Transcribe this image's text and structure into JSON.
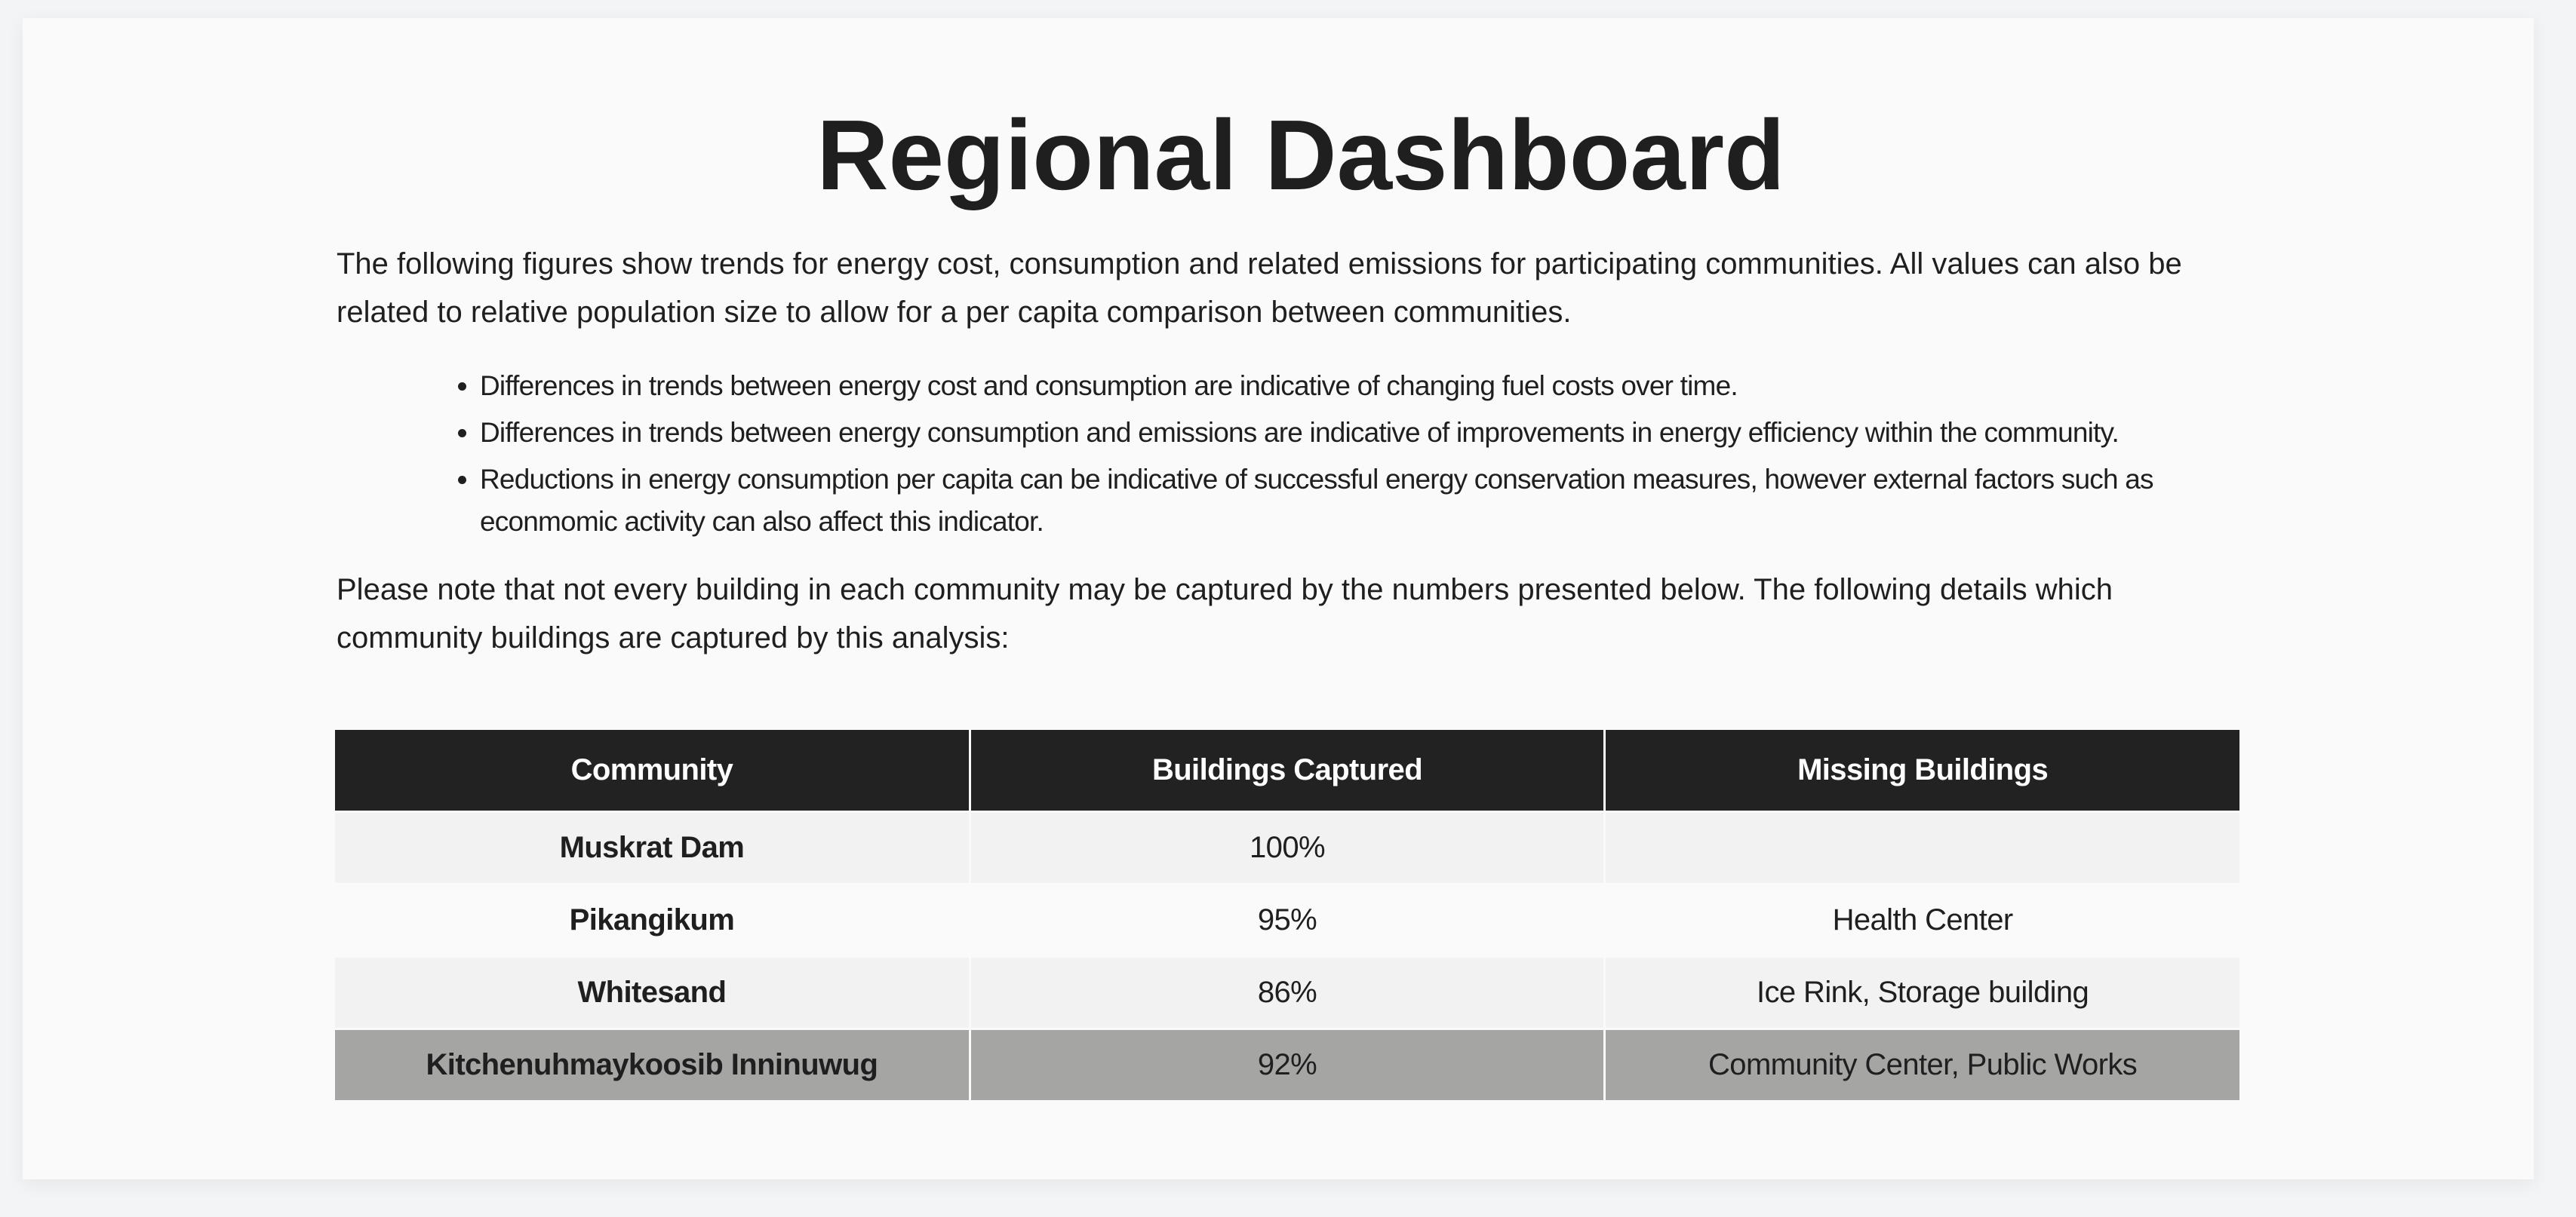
{
  "page": {
    "title": "Regional Dashboard",
    "intro": "The following figures show trends for energy cost, consumption and related emissions for participating communities. All values can also be related to relative population size to allow for a per capita comparison between communities.",
    "bullets": [
      "Differences in trends between energy cost and consumption are indicative of changing fuel costs over time.",
      "Differences in trends between energy consumption and emissions are indicative of improvements in energy efficiency within the community.",
      "Reductions in energy consumption per capita can be indicative of successful energy conservation measures, however external factors such as econmomic activity can also affect this indicator."
    ],
    "note": "Please note that not every building in each community may be captured by the numbers presented below. The following details which community buildings are captured by this analysis:"
  },
  "table": {
    "headers": [
      "Community",
      "Buildings Captured",
      "Missing Buildings"
    ],
    "rows": [
      {
        "community": "Muskrat Dam",
        "captured": "100%",
        "missing": ""
      },
      {
        "community": "Pikangikum",
        "captured": "95%",
        "missing": "Health Center"
      },
      {
        "community": "Whitesand",
        "captured": "86%",
        "missing": "Ice Rink, Storage building"
      },
      {
        "community": "Kitchenuhmaykoosib Inninuwug",
        "captured": "92%",
        "missing": "Community Center, Public Works"
      }
    ]
  },
  "colors": {
    "header_bg": "#222222",
    "row_light": "#f2f2f2",
    "row_white": "#fafafa",
    "row_highlight": "#a5a6a4"
  }
}
